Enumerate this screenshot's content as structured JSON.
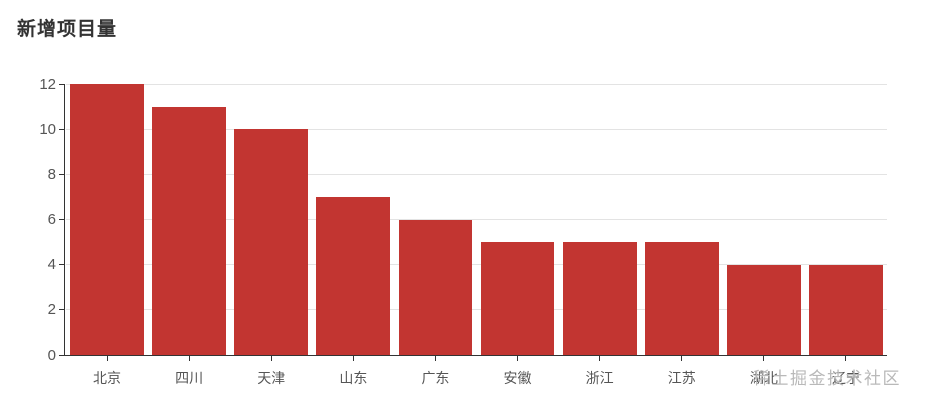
{
  "title": "新增项目量",
  "watermark": "稀土掘金技术社区",
  "colors": {
    "bar": "#c23531",
    "axis": "#333333",
    "tick_label": "#555555",
    "grid": "#e3e3e3",
    "title": "#333333",
    "watermark": "#b9b9b9"
  },
  "chart_data": {
    "type": "bar",
    "title": "新增项目量",
    "categories": [
      "北京",
      "四川",
      "天津",
      "山东",
      "广东",
      "安徽",
      "浙江",
      "江苏",
      "湖北",
      "辽宁"
    ],
    "values": [
      12,
      11,
      10,
      7,
      6,
      5,
      5,
      5,
      4,
      4
    ],
    "xlabel": "",
    "ylabel": "",
    "ylim": [
      0,
      12
    ],
    "y_ticks": [
      0,
      2,
      4,
      6,
      8,
      10,
      12
    ],
    "grid": true,
    "legend": false,
    "bar_width_ratio": 0.9
  }
}
